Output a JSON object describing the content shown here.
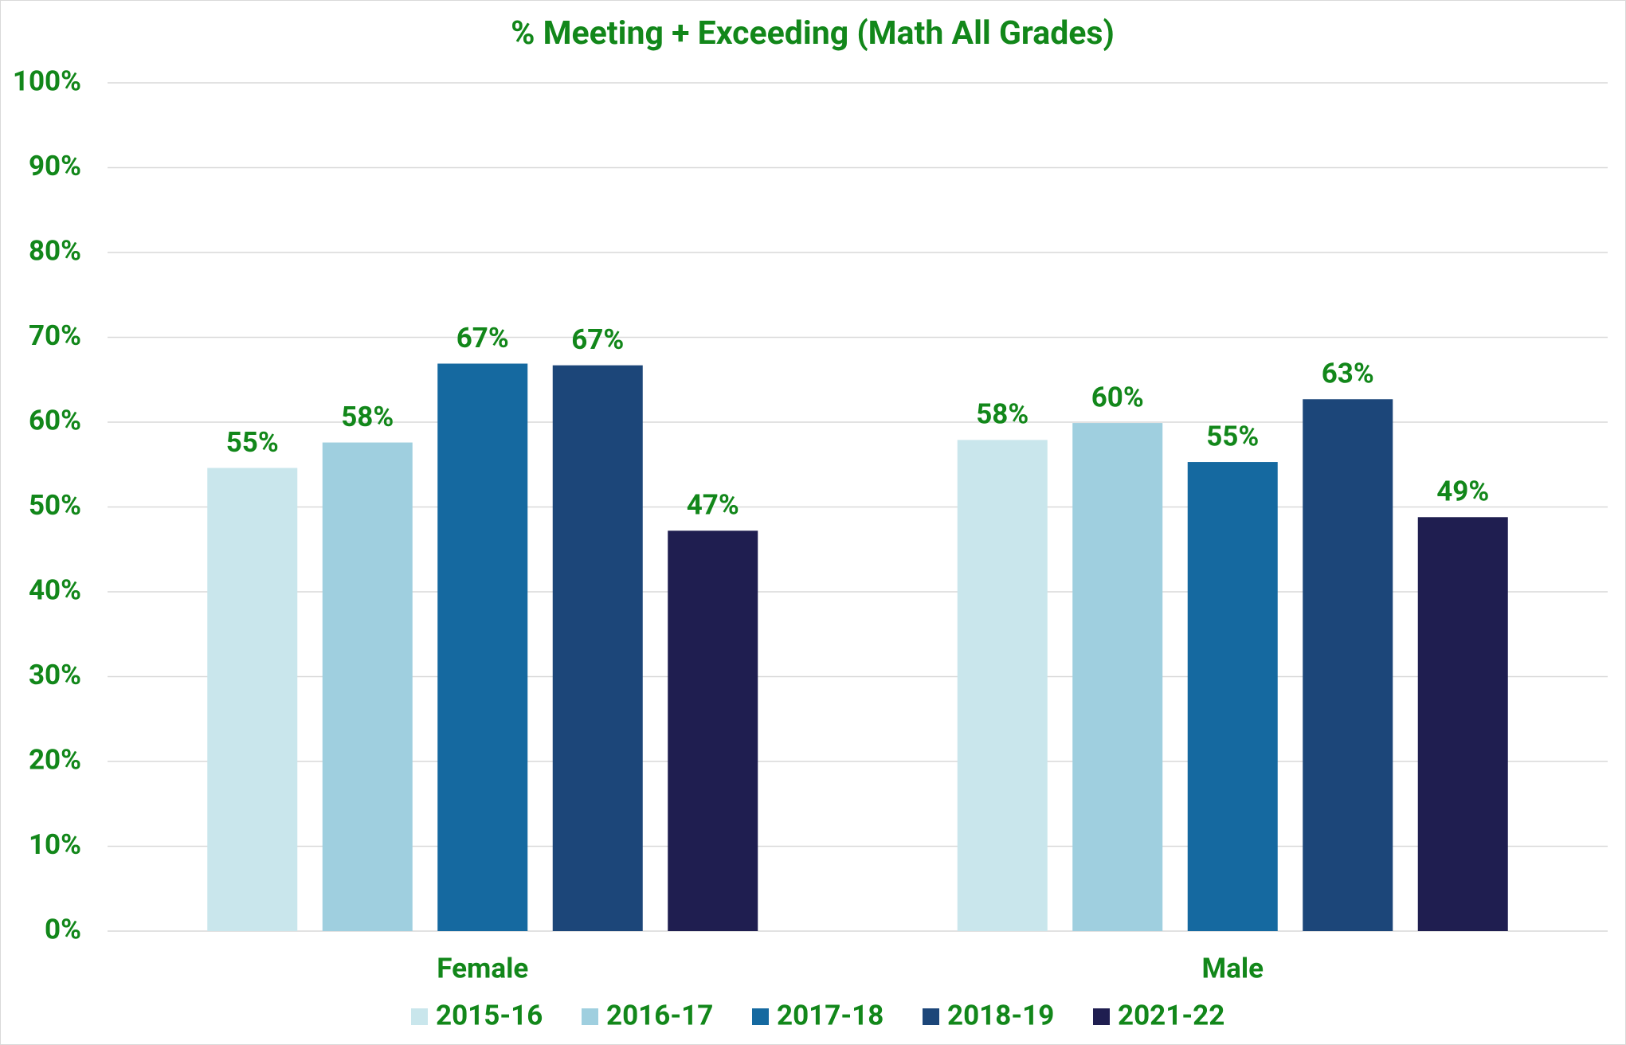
{
  "chart_data": {
    "type": "bar",
    "title": "% Meeting + Exceeding (Math All Grades)",
    "categories": [
      "Female",
      "Male"
    ],
    "series": [
      {
        "name": "2015-16",
        "color": "#c9e6ec",
        "values": [
          54.6,
          57.9
        ],
        "value_labels": [
          "55%",
          "58%"
        ]
      },
      {
        "name": "2016-17",
        "color": "#9fcfdf",
        "values": [
          57.6,
          59.9
        ],
        "value_labels": [
          "58%",
          "60%"
        ]
      },
      {
        "name": "2017-18",
        "color": "#1569a0",
        "values": [
          66.9,
          55.3
        ],
        "value_labels": [
          "67%",
          "55%"
        ]
      },
      {
        "name": "2018-19",
        "color": "#1c4679",
        "values": [
          66.7,
          62.7
        ],
        "value_labels": [
          "67%",
          "63%"
        ]
      },
      {
        "name": "2021-22",
        "color": "#1f1e50",
        "values": [
          47.2,
          48.8
        ],
        "value_labels": [
          "47%",
          "49%"
        ]
      }
    ],
    "ylim": [
      0,
      100
    ],
    "yticks": [
      {
        "value": 0,
        "label": "0%"
      },
      {
        "value": 10,
        "label": "10%"
      },
      {
        "value": 20,
        "label": "20%"
      },
      {
        "value": 30,
        "label": "30%"
      },
      {
        "value": 40,
        "label": "40%"
      },
      {
        "value": 50,
        "label": "50%"
      },
      {
        "value": 60,
        "label": "60%"
      },
      {
        "value": 70,
        "label": "70%"
      },
      {
        "value": 80,
        "label": "80%"
      },
      {
        "value": 90,
        "label": "90%"
      },
      {
        "value": 100,
        "label": "100%"
      }
    ],
    "grid": true,
    "legend": "bottom"
  }
}
